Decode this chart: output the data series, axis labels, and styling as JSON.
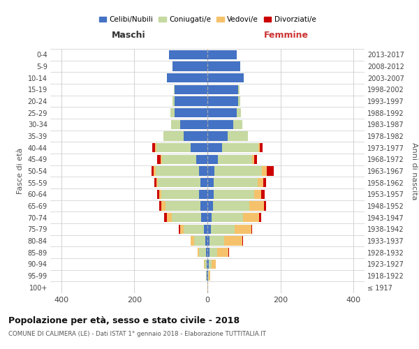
{
  "age_groups": [
    "100+",
    "95-99",
    "90-94",
    "85-89",
    "80-84",
    "75-79",
    "70-74",
    "65-69",
    "60-64",
    "55-59",
    "50-54",
    "45-49",
    "40-44",
    "35-39",
    "30-34",
    "25-29",
    "20-24",
    "15-19",
    "10-14",
    "5-9",
    "0-4"
  ],
  "birth_years": [
    "≤ 1917",
    "1918-1922",
    "1923-1927",
    "1928-1932",
    "1933-1937",
    "1938-1942",
    "1943-1947",
    "1948-1952",
    "1953-1957",
    "1958-1962",
    "1963-1967",
    "1968-1972",
    "1973-1977",
    "1978-1982",
    "1983-1987",
    "1988-1992",
    "1993-1997",
    "1998-2002",
    "2003-2007",
    "2008-2012",
    "2013-2017"
  ],
  "maschi_celibi": [
    0,
    2,
    2,
    4,
    6,
    10,
    18,
    20,
    22,
    20,
    22,
    30,
    45,
    65,
    75,
    90,
    90,
    90,
    110,
    95,
    105
  ],
  "maschi_coniugati": [
    0,
    2,
    5,
    18,
    30,
    55,
    80,
    95,
    105,
    115,
    120,
    95,
    95,
    55,
    25,
    12,
    5,
    2,
    0,
    0,
    0
  ],
  "maschi_vedovi": [
    0,
    0,
    3,
    5,
    10,
    10,
    12,
    12,
    5,
    5,
    5,
    3,
    3,
    0,
    0,
    0,
    0,
    0,
    0,
    0,
    0
  ],
  "maschi_divorziati": [
    0,
    0,
    0,
    0,
    0,
    3,
    8,
    5,
    5,
    5,
    5,
    10,
    8,
    0,
    0,
    0,
    0,
    0,
    0,
    0,
    0
  ],
  "femmine_celibi": [
    0,
    2,
    3,
    5,
    6,
    10,
    12,
    15,
    18,
    18,
    20,
    28,
    40,
    55,
    70,
    80,
    85,
    85,
    100,
    90,
    80
  ],
  "femmine_coniugati": [
    0,
    2,
    8,
    22,
    40,
    65,
    85,
    100,
    110,
    120,
    130,
    95,
    100,
    55,
    25,
    12,
    5,
    2,
    0,
    0,
    0
  ],
  "femmine_vedovi": [
    1,
    3,
    12,
    30,
    50,
    45,
    45,
    40,
    20,
    15,
    12,
    5,
    3,
    0,
    0,
    0,
    0,
    0,
    0,
    0,
    0
  ],
  "femmine_divorziati": [
    0,
    0,
    0,
    2,
    2,
    3,
    5,
    5,
    8,
    8,
    20,
    8,
    8,
    0,
    0,
    0,
    0,
    0,
    0,
    0,
    0
  ],
  "colors": {
    "celibi": "#4472c4",
    "coniugati": "#c5d9a0",
    "vedovi": "#f5c26b",
    "divorziati": "#cc0000"
  },
  "title": "Popolazione per età, sesso e stato civile - 2018",
  "subtitle": "COMUNE DI CALIMERA (LE) - Dati ISTAT 1° gennaio 2018 - Elaborazione TUTTITALIA.IT",
  "xlabel_left": "Maschi",
  "xlabel_right": "Femmine",
  "ylabel_left": "Fasce di età",
  "ylabel_right": "Anni di nascita",
  "xlim": 430,
  "background_color": "#ffffff",
  "grid_color": "#cccccc"
}
